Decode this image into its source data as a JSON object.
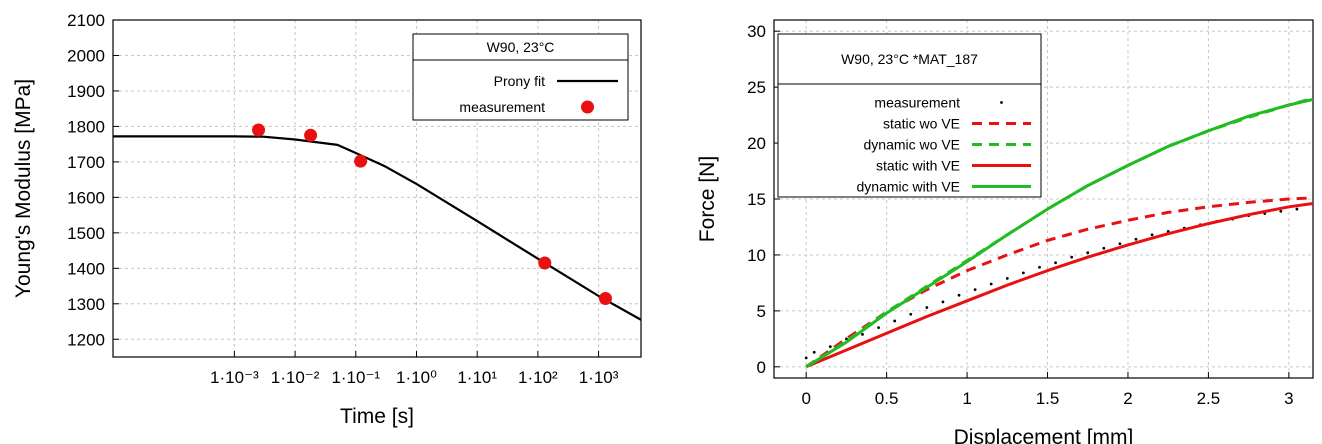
{
  "chart_data": [
    {
      "type": "line",
      "title": "",
      "xlabel": "Time [s]",
      "ylabel": "Young's Modulus [MPa]",
      "x_scale": "log",
      "xlim": [
        1e-05,
        5000
      ],
      "ylim": [
        1150,
        2100
      ],
      "x_ticks": [
        {
          "value": 0.001,
          "label": "1·10⁻³"
        },
        {
          "value": 0.01,
          "label": "1·10⁻²"
        },
        {
          "value": 0.1,
          "label": "1·10⁻¹"
        },
        {
          "value": 1,
          "label": "1·10⁰"
        },
        {
          "value": 10,
          "label": "1·10¹"
        },
        {
          "value": 100,
          "label": "1·10²"
        },
        {
          "value": 1000,
          "label": "1·10³"
        }
      ],
      "y_ticks": [
        1200,
        1300,
        1400,
        1500,
        1600,
        1700,
        1800,
        1900,
        2000,
        2100
      ],
      "grid": true,
      "legend_title": "W90, 23°C",
      "legend_position": "top-right",
      "series": [
        {
          "name": "Prony fit",
          "style": "line",
          "color": "#000000",
          "x": [
            1e-05,
            0.0001,
            0.001,
            0.003,
            0.01,
            0.05,
            0.1,
            0.3,
            1,
            10,
            100,
            1000,
            5000
          ],
          "y": [
            1772,
            1772,
            1772,
            1771,
            1763,
            1748,
            1725,
            1688,
            1638,
            1533,
            1427,
            1322,
            1255
          ]
        },
        {
          "name": "measurement",
          "style": "points",
          "color": "#e81010",
          "x": [
            0.0025,
            0.018,
            0.12,
            130,
            1300
          ],
          "y": [
            1790,
            1775,
            1702,
            1415,
            1315
          ]
        }
      ]
    },
    {
      "type": "line",
      "title": "",
      "xlabel": "Displacement [mm]",
      "ylabel": "Force [N]",
      "xlim": [
        -0.2,
        3.15
      ],
      "ylim": [
        -1,
        31
      ],
      "x_ticks": [
        0,
        0.5,
        1,
        1.5,
        2,
        2.5,
        3
      ],
      "y_ticks": [
        0,
        5,
        10,
        15,
        20,
        25,
        30
      ],
      "grid": true,
      "legend_title": "W90, 23°C *MAT_187",
      "legend_position": "top-left",
      "series": [
        {
          "name": "measurement",
          "style": "dots",
          "color": "#000000",
          "x": [
            0,
            0.05,
            0.15,
            0.25,
            0.35,
            0.45,
            0.55,
            0.65,
            0.75,
            0.85,
            0.95,
            1.05,
            1.15,
            1.25,
            1.35,
            1.45,
            1.55,
            1.65,
            1.75,
            1.85,
            1.95,
            2.05,
            2.15,
            2.25,
            2.35,
            2.45,
            2.55,
            2.65,
            2.75,
            2.85,
            2.95,
            3.05
          ],
          "y": [
            0.8,
            1.3,
            1.8,
            2.5,
            2.9,
            3.5,
            4.1,
            4.7,
            5.3,
            5.8,
            6.4,
            6.9,
            7.4,
            7.9,
            8.4,
            8.9,
            9.3,
            9.8,
            10.2,
            10.6,
            11.0,
            11.4,
            11.8,
            12.1,
            12.4,
            12.7,
            13.0,
            13.2,
            13.5,
            13.7,
            13.9,
            14.1
          ]
        },
        {
          "name": "static wo VE",
          "style": "dashed",
          "color": "#e81010",
          "x": [
            0,
            0.25,
            0.5,
            0.75,
            1,
            1.25,
            1.5,
            1.75,
            2,
            2.25,
            2.5,
            2.75,
            3,
            3.15
          ],
          "y": [
            0,
            2.5,
            4.9,
            6.9,
            8.6,
            10.0,
            11.3,
            12.3,
            13.1,
            13.8,
            14.3,
            14.7,
            15.0,
            15.1
          ]
        },
        {
          "name": "dynamic wo VE",
          "style": "dashed",
          "color": "#22bb22",
          "x": [
            0,
            0.25,
            0.5,
            0.75,
            1,
            1.25,
            1.5,
            1.75,
            2,
            2.25,
            2.5,
            2.75,
            3,
            3.15
          ],
          "y": [
            0,
            2.3,
            4.9,
            7.2,
            9.5,
            11.8,
            14.1,
            16.2,
            18.0,
            19.7,
            21.1,
            22.3,
            23.4,
            24.0
          ]
        },
        {
          "name": "static with VE",
          "style": "solid",
          "color": "#e81010",
          "x": [
            0,
            0.25,
            0.5,
            0.75,
            1,
            1.25,
            1.5,
            1.75,
            2,
            2.25,
            2.5,
            2.75,
            3,
            3.15
          ],
          "y": [
            0,
            1.5,
            3.0,
            4.5,
            5.9,
            7.3,
            8.6,
            9.8,
            10.9,
            11.9,
            12.8,
            13.6,
            14.3,
            14.6
          ]
        },
        {
          "name": "dynamic with VE",
          "style": "solid",
          "color": "#22bb22",
          "x": [
            0,
            0.25,
            0.5,
            0.75,
            1,
            1.25,
            1.5,
            1.75,
            2,
            2.25,
            2.5,
            2.75,
            3,
            3.15
          ],
          "y": [
            0,
            2.2,
            4.8,
            7.1,
            9.4,
            11.8,
            14.1,
            16.2,
            18.0,
            19.7,
            21.1,
            22.4,
            23.4,
            23.9
          ]
        }
      ]
    }
  ]
}
